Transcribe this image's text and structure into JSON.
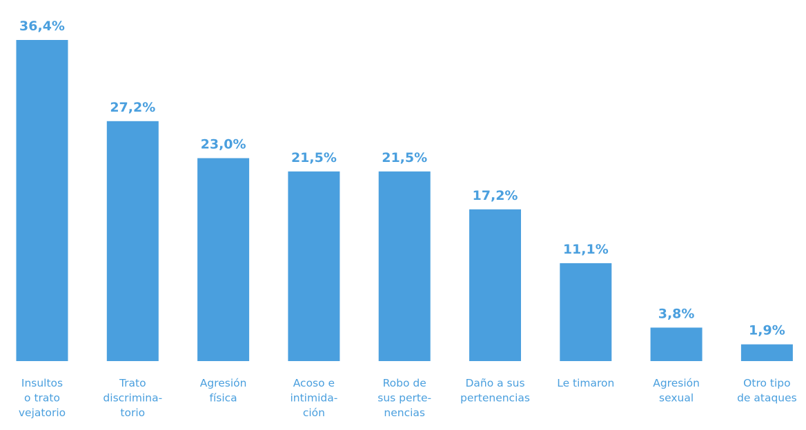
{
  "chart_data": {
    "type": "bar",
    "categories": [
      [
        "Insultos",
        "o trato",
        "vejatorio"
      ],
      [
        "Trato",
        "discrimina-",
        "torio"
      ],
      [
        "Agresión",
        "física"
      ],
      [
        "Acoso e",
        "intimida-",
        "ción"
      ],
      [
        "Robo de",
        "sus perte-",
        "nencias"
      ],
      [
        "Daño a sus",
        "pertenencias"
      ],
      [
        "Le timaron"
      ],
      [
        "Agresión",
        "sexual"
      ],
      [
        "Otro tipo",
        "de ataques"
      ]
    ],
    "values": [
      36.4,
      27.2,
      23.0,
      21.5,
      21.5,
      17.2,
      11.1,
      3.8,
      1.9
    ],
    "value_labels": [
      "36,4%",
      "27,2%",
      "23,0%",
      "21,5%",
      "21,5%",
      "17,2%",
      "11,1%",
      "3,8%",
      "1,9%"
    ],
    "ylim": [
      0,
      36.4
    ],
    "grid": false,
    "colors": {
      "bar": "#4a9fde",
      "value_text": "#4a9fde",
      "category_text": "#4a9fde"
    }
  }
}
